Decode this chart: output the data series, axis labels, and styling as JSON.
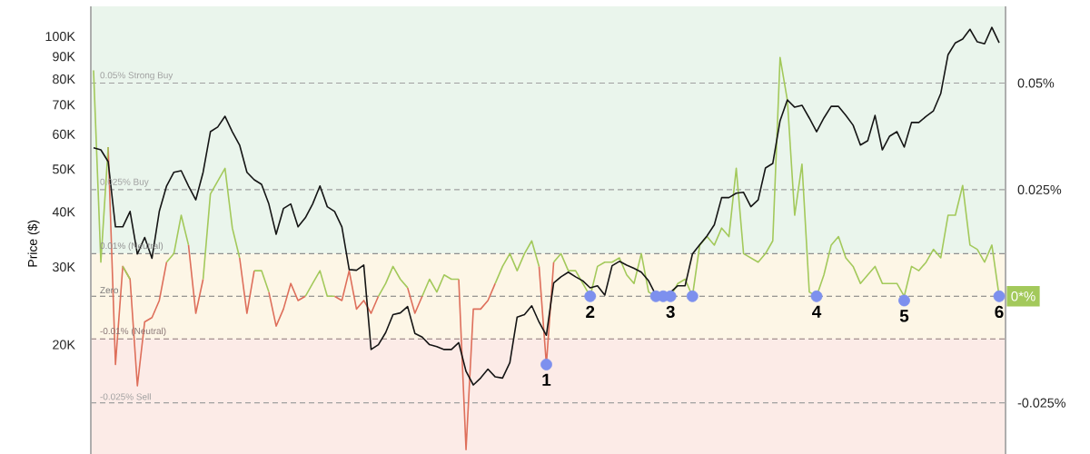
{
  "chart_data": {
    "type": "line",
    "ylabel": "Price ($)",
    "log": "y",
    "categories": [
      null,
      null,
      null,
      null,
      null,
      null,
      null,
      null,
      null,
      null,
      null,
      null,
      null,
      null,
      null,
      null,
      null,
      null,
      null,
      null,
      null,
      null,
      null,
      null,
      null,
      null,
      null,
      null,
      null,
      null,
      null,
      null,
      null,
      null,
      null,
      null,
      null,
      null,
      null,
      null,
      null,
      null,
      null,
      null,
      null,
      null,
      null,
      null,
      null,
      null,
      null,
      null,
      null,
      null,
      null,
      null,
      null,
      null,
      null,
      null,
      null,
      null,
      null,
      null,
      null,
      null,
      null,
      null,
      null,
      null,
      null,
      null,
      null,
      null,
      null,
      null,
      null,
      null,
      null,
      null,
      null,
      null,
      null,
      null,
      null,
      null,
      null,
      null,
      null,
      null,
      null,
      null,
      null,
      null,
      null,
      null,
      null,
      null,
      null,
      null,
      null,
      null,
      null,
      null,
      null,
      null,
      null,
      null,
      null,
      null,
      null,
      null,
      null,
      null,
      null,
      null,
      null,
      null,
      null,
      null,
      null,
      null,
      null,
      null,
      null
    ],
    "ylim": [
      11300,
      117000
    ],
    "yticks": [
      {
        "value": 20000,
        "label": "20K"
      },
      {
        "value": 30000,
        "label": "30K"
      },
      {
        "value": 40000,
        "label": "40K"
      },
      {
        "value": 50000,
        "label": "50K"
      },
      {
        "value": 60000,
        "label": "60K"
      },
      {
        "value": 70000,
        "label": "70K"
      },
      {
        "value": 80000,
        "label": "80K"
      },
      {
        "value": 90000,
        "label": "90K"
      },
      {
        "value": 100000,
        "label": "100K"
      }
    ],
    "y2lim": [
      -0.037,
      0.068
    ],
    "y2ticks": [
      {
        "value": 0.05,
        "label": "0.05%"
      },
      {
        "value": 0.025,
        "label": "0.025%"
      },
      {
        "value": -0.025,
        "label": "-0.025%"
      }
    ],
    "bands": [
      {
        "axis": "y2",
        "from": 0.01,
        "to": 0.068,
        "color": "#eaf5ec"
      },
      {
        "axis": "y2",
        "from": -0.01,
        "to": 0.01,
        "color": "#fdf6e6"
      },
      {
        "axis": "y2",
        "from": -0.037,
        "to": -0.01,
        "color": "#fcebe7"
      }
    ],
    "ref_lines": [
      {
        "axis": "y2",
        "value": 0.05,
        "label": "0.05% Strong Buy",
        "color": "#a0a0a0",
        "line_style": "dashed"
      },
      {
        "axis": "y2",
        "value": 0.025,
        "label": "0.025% Buy",
        "color": "#a0a0a0",
        "line_style": "dashed"
      },
      {
        "axis": "y2",
        "value": 0.01,
        "label": "0.01% (Neutral)",
        "color": "#8f8f8f",
        "line_style": "dashed"
      },
      {
        "axis": "y2",
        "value": 0,
        "label": "Zero",
        "color": "#7a7a7a",
        "line_style": "dashed"
      },
      {
        "axis": "y2",
        "value": -0.01,
        "label": "-0.01% (Neutral)",
        "color": "#8a7676",
        "line_style": "dashed"
      },
      {
        "axis": "y2",
        "value": -0.025,
        "label": "-0.025% Sell",
        "color": "#a0a0a0",
        "line_style": "dashed"
      }
    ],
    "series": [
      {
        "color": "#151515",
        "values": [
          55900,
          55300,
          52000,
          37000,
          37000,
          40100,
          32100,
          35000,
          31400,
          40100,
          45800,
          49200,
          49600,
          45800,
          42600,
          49200,
          60800,
          62300,
          65900,
          60800,
          56700,
          49200,
          47300,
          46200,
          41700,
          35600,
          40700,
          41700,
          37000,
          38800,
          41700,
          45800,
          41100,
          40100,
          37000,
          29600,
          29500,
          30300,
          19500,
          20000,
          21300,
          23400,
          23600,
          24400,
          21200,
          20800,
          20000,
          19800,
          19500,
          19500,
          20200,
          17400,
          16200,
          16800,
          17600,
          16900,
          16800,
          18200,
          23100,
          23400,
          24500,
          22500,
          21000,
          27600,
          28500,
          29200,
          28500,
          27900,
          26900,
          27200,
          25900,
          30200,
          30900,
          30300,
          29800,
          29200,
          27900,
          25900,
          25600,
          26300,
          27200,
          27200,
          32100,
          33700,
          35300,
          37400,
          43100,
          43100,
          44100,
          44300,
          41100,
          42600,
          50300,
          51500,
          64400,
          71800,
          69100,
          69800,
          65300,
          60800,
          65300,
          69400,
          69400,
          66200,
          62900,
          56700,
          58000,
          66200,
          55300,
          59400,
          60800,
          56100,
          63800,
          63800,
          65900,
          67800,
          74200,
          90900,
          96700,
          98600,
          103800,
          97200,
          96200,
          104800,
          96700
        ]
      },
      {
        "color": "#de6f5b",
        "axis": "y2",
        "values": [
          null,
          null,
          0.035,
          -0.016,
          0.007,
          0.004,
          -0.021,
          -0.006,
          -0.005,
          -0.001,
          0.008,
          null,
          null,
          0.012,
          -0.004,
          0.004,
          null,
          null,
          null,
          null,
          0.009,
          -0.004,
          0.006,
          null,
          0.001,
          -0.007,
          -0.003,
          0.003,
          -0.001,
          0,
          null,
          null,
          null,
          0,
          -0.001,
          0.006,
          -0.003,
          -0.001,
          -0.004,
          0,
          null,
          null,
          null,
          0.002,
          -0.004,
          0,
          null,
          null,
          null,
          null,
          0.004,
          -0.036,
          -0.003,
          -0.003,
          -0.001,
          0.003,
          null,
          null,
          null,
          null,
          null,
          0.007,
          -0.016,
          0.008,
          null,
          null,
          null,
          null,
          null,
          null,
          null,
          null,
          null,
          null,
          null,
          null,
          null,
          null,
          null,
          null,
          null,
          null,
          null,
          null,
          null,
          null,
          null,
          null,
          null,
          null,
          null,
          null,
          null,
          null,
          null,
          null,
          null,
          null,
          null,
          null,
          null,
          null,
          null,
          null,
          null,
          null,
          null,
          null,
          null,
          null,
          null,
          null,
          null,
          null,
          null,
          null,
          null,
          null,
          null,
          null,
          null,
          null,
          null,
          null,
          null
        ]
      },
      {
        "color": "#a3c95b",
        "axis": "y2",
        "values": [
          0.053,
          0.008,
          0.035,
          null,
          0.007,
          0.004,
          null,
          null,
          null,
          null,
          0.008,
          0.01,
          0.019,
          0.012,
          null,
          0.004,
          0.024,
          0.027,
          0.03,
          0.016,
          0.009,
          null,
          0.006,
          0.006,
          0.001,
          null,
          null,
          null,
          null,
          0,
          0.003,
          0.006,
          0,
          0,
          null,
          null,
          null,
          null,
          null,
          0,
          0.003,
          0.007,
          0.004,
          0.002,
          null,
          0,
          0.004,
          0.001,
          0.005,
          0.004,
          0.004,
          null,
          null,
          null,
          null,
          0.003,
          0.007,
          0.01,
          0.006,
          0.01,
          0.013,
          0.007,
          null,
          0.008,
          0.01,
          0.006,
          0.006,
          0.003,
          0,
          0.007,
          0.008,
          0.008,
          0.009,
          0.005,
          0.003,
          0.01,
          0.001,
          0,
          0,
          0,
          0.003,
          0.004,
          0,
          0.012,
          0.014,
          0.012,
          0.016,
          0.014,
          0.03,
          0.01,
          0.009,
          0.008,
          0.01,
          0.013,
          0.056,
          0.046,
          0.019,
          0.031,
          0.001,
          0,
          0.005,
          0.012,
          0.014,
          0.009,
          0.007,
          0.003,
          0.005,
          0.007,
          0.003,
          0.003,
          0.003,
          0,
          0.007,
          0.006,
          0.008,
          0.011,
          0.009,
          0.019,
          0.019,
          0.026,
          0.012,
          0.011,
          0.008,
          0.012,
          0
        ],
        "value_labels": [
          null,
          null,
          null,
          null,
          null,
          null,
          null,
          null,
          null,
          null,
          null,
          null,
          null,
          null,
          null,
          null,
          null,
          null,
          null,
          null,
          null,
          null,
          null,
          null,
          null,
          null,
          null,
          null,
          null,
          null,
          null,
          null,
          null,
          null,
          null,
          null,
          null,
          null,
          null,
          null,
          null,
          null,
          null,
          null,
          null,
          null,
          null,
          null,
          null,
          null,
          null,
          null,
          null,
          null,
          null,
          null,
          null,
          null,
          null,
          null,
          null,
          null,
          null,
          null,
          null,
          null,
          null,
          null,
          null,
          null,
          null,
          null,
          null,
          null,
          null,
          null,
          null,
          null,
          null,
          null,
          null,
          null,
          null,
          null,
          null,
          null,
          null,
          null,
          null,
          null,
          null,
          null,
          null,
          null,
          null,
          null,
          null,
          null,
          null,
          null,
          null,
          null,
          null,
          null,
          null,
          null,
          null,
          null,
          null,
          null,
          null,
          null,
          null,
          null,
          null,
          null,
          null,
          null,
          null,
          null,
          null,
          null,
          null,
          null,
          "0*%"
        ]
      },
      {
        "name": "1",
        "type": "scatter",
        "color": "#7d90ee",
        "axis": "y2",
        "marker": "circle",
        "values": [
          null,
          null,
          null,
          null,
          null,
          null,
          null,
          null,
          null,
          null,
          null,
          null,
          null,
          null,
          null,
          null,
          null,
          null,
          null,
          null,
          null,
          null,
          null,
          null,
          null,
          null,
          null,
          null,
          null,
          null,
          null,
          null,
          null,
          null,
          null,
          null,
          null,
          null,
          null,
          null,
          null,
          null,
          null,
          null,
          null,
          null,
          null,
          null,
          null,
          null,
          null,
          null,
          null,
          null,
          null,
          null,
          null,
          null,
          null,
          null,
          null,
          null,
          -0.016,
          null,
          null,
          null,
          null,
          null,
          null,
          null,
          null,
          null,
          null,
          null,
          null,
          null,
          null,
          null,
          null,
          null,
          null,
          null,
          null,
          null,
          null,
          null,
          null,
          null,
          null,
          null,
          null,
          null,
          null,
          null,
          null,
          null,
          null,
          null,
          null,
          null,
          null,
          null,
          null,
          null,
          null,
          null,
          null,
          null,
          null,
          null,
          null,
          null,
          null,
          null,
          null,
          null,
          null,
          null,
          null,
          null,
          null,
          null,
          null,
          null,
          null
        ]
      },
      {
        "name": "2",
        "type": "scatter",
        "color": "#7d90ee",
        "axis": "y2",
        "marker": "circle",
        "values": [
          null,
          null,
          null,
          null,
          null,
          null,
          null,
          null,
          null,
          null,
          null,
          null,
          null,
          null,
          null,
          null,
          null,
          null,
          null,
          null,
          null,
          null,
          null,
          null,
          null,
          null,
          null,
          null,
          null,
          null,
          null,
          null,
          null,
          null,
          null,
          null,
          null,
          null,
          null,
          null,
          null,
          null,
          null,
          null,
          null,
          null,
          null,
          null,
          null,
          null,
          null,
          null,
          null,
          null,
          null,
          null,
          null,
          null,
          null,
          null,
          null,
          null,
          null,
          null,
          null,
          null,
          null,
          null,
          0,
          null,
          null,
          null,
          null,
          null,
          null,
          null,
          null,
          null,
          null,
          null,
          null,
          null,
          null,
          null,
          null,
          null,
          null,
          null,
          null,
          null,
          null,
          null,
          null,
          null,
          null,
          null,
          null,
          null,
          null,
          null,
          null,
          null,
          null,
          null,
          null,
          null,
          null,
          null,
          null,
          null,
          null,
          null,
          null,
          null,
          null,
          null,
          null,
          null,
          null,
          null,
          null,
          null,
          null,
          null,
          null
        ]
      },
      {
        "name": "3",
        "type": "scatter",
        "color": "#7d90ee",
        "axis": "y2",
        "marker": "circle",
        "values": [
          null,
          null,
          null,
          null,
          null,
          null,
          null,
          null,
          null,
          null,
          null,
          null,
          null,
          null,
          null,
          null,
          null,
          null,
          null,
          null,
          null,
          null,
          null,
          null,
          null,
          null,
          null,
          null,
          null,
          null,
          null,
          null,
          null,
          null,
          null,
          null,
          null,
          null,
          null,
          null,
          null,
          null,
          null,
          null,
          null,
          null,
          null,
          null,
          null,
          null,
          null,
          null,
          null,
          null,
          null,
          null,
          null,
          null,
          null,
          null,
          null,
          null,
          null,
          null,
          null,
          null,
          null,
          null,
          null,
          null,
          null,
          null,
          null,
          null,
          null,
          null,
          null,
          0,
          0,
          0,
          null,
          null,
          0,
          null,
          null,
          null,
          null,
          null,
          null,
          null,
          null,
          null,
          null,
          null,
          null,
          null,
          null,
          null,
          null,
          null,
          null,
          null,
          null,
          null,
          null,
          null,
          null,
          null,
          null,
          null,
          null,
          null,
          null,
          null,
          null,
          null,
          null,
          null,
          null,
          null,
          null,
          null,
          null,
          null,
          null
        ]
      },
      {
        "name": "4",
        "type": "scatter",
        "color": "#7d90ee",
        "axis": "y2",
        "marker": "circle",
        "values": [
          null,
          null,
          null,
          null,
          null,
          null,
          null,
          null,
          null,
          null,
          null,
          null,
          null,
          null,
          null,
          null,
          null,
          null,
          null,
          null,
          null,
          null,
          null,
          null,
          null,
          null,
          null,
          null,
          null,
          null,
          null,
          null,
          null,
          null,
          null,
          null,
          null,
          null,
          null,
          null,
          null,
          null,
          null,
          null,
          null,
          null,
          null,
          null,
          null,
          null,
          null,
          null,
          null,
          null,
          null,
          null,
          null,
          null,
          null,
          null,
          null,
          null,
          null,
          null,
          null,
          null,
          null,
          null,
          null,
          null,
          null,
          null,
          null,
          null,
          null,
          null,
          null,
          null,
          null,
          null,
          null,
          null,
          null,
          null,
          null,
          null,
          null,
          null,
          null,
          null,
          null,
          null,
          null,
          null,
          null,
          null,
          null,
          null,
          null,
          0,
          null,
          null,
          null,
          null,
          null,
          null,
          null,
          null,
          null,
          null,
          null,
          null,
          null,
          null,
          null,
          null,
          null,
          null,
          null,
          null,
          null,
          null,
          null,
          null,
          null
        ]
      },
      {
        "name": "5",
        "type": "scatter",
        "color": "#7d90ee",
        "axis": "y2",
        "marker": "circle",
        "values": [
          null,
          null,
          null,
          null,
          null,
          null,
          null,
          null,
          null,
          null,
          null,
          null,
          null,
          null,
          null,
          null,
          null,
          null,
          null,
          null,
          null,
          null,
          null,
          null,
          null,
          null,
          null,
          null,
          null,
          null,
          null,
          null,
          null,
          null,
          null,
          null,
          null,
          null,
          null,
          null,
          null,
          null,
          null,
          null,
          null,
          null,
          null,
          null,
          null,
          null,
          null,
          null,
          null,
          null,
          null,
          null,
          null,
          null,
          null,
          null,
          null,
          null,
          null,
          null,
          null,
          null,
          null,
          null,
          null,
          null,
          null,
          null,
          null,
          null,
          null,
          null,
          null,
          null,
          null,
          null,
          null,
          null,
          null,
          null,
          null,
          null,
          null,
          null,
          null,
          null,
          null,
          null,
          null,
          null,
          null,
          null,
          null,
          null,
          null,
          null,
          null,
          null,
          null,
          null,
          null,
          null,
          null,
          null,
          null,
          null,
          null,
          -0.001,
          null,
          null,
          null,
          null,
          null,
          null,
          null,
          null,
          null,
          null,
          null,
          null,
          null
        ]
      },
      {
        "name": "6",
        "type": "scatter",
        "color": "#7d90ee",
        "axis": "y2",
        "marker": "circle",
        "values": [
          null,
          null,
          null,
          null,
          null,
          null,
          null,
          null,
          null,
          null,
          null,
          null,
          null,
          null,
          null,
          null,
          null,
          null,
          null,
          null,
          null,
          null,
          null,
          null,
          null,
          null,
          null,
          null,
          null,
          null,
          null,
          null,
          null,
          null,
          null,
          null,
          null,
          null,
          null,
          null,
          null,
          null,
          null,
          null,
          null,
          null,
          null,
          null,
          null,
          null,
          null,
          null,
          null,
          null,
          null,
          null,
          null,
          null,
          null,
          null,
          null,
          null,
          null,
          null,
          null,
          null,
          null,
          null,
          null,
          null,
          null,
          null,
          null,
          null,
          null,
          null,
          null,
          null,
          null,
          null,
          null,
          null,
          null,
          null,
          null,
          null,
          null,
          null,
          null,
          null,
          null,
          null,
          null,
          null,
          null,
          null,
          null,
          null,
          null,
          null,
          null,
          null,
          null,
          null,
          null,
          null,
          null,
          null,
          null,
          null,
          null,
          null,
          null,
          null,
          null,
          null,
          null,
          null,
          null,
          null,
          null,
          null,
          null,
          null,
          0
        ]
      }
    ]
  }
}
